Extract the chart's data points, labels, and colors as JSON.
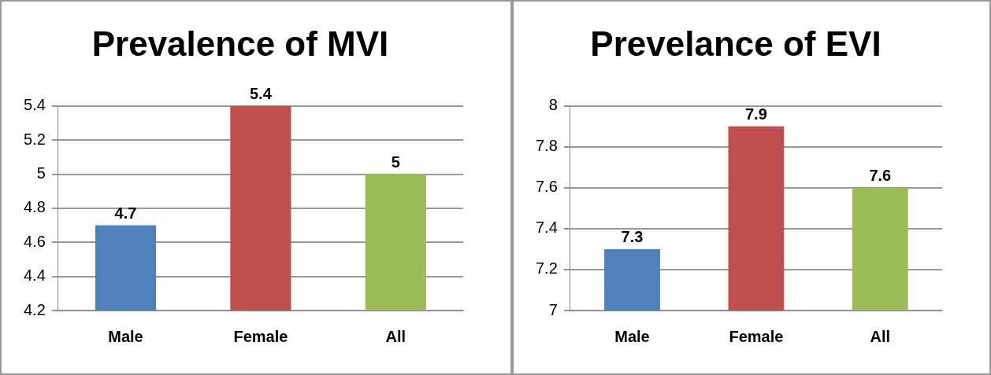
{
  "chart_data": [
    {
      "type": "bar",
      "title": "Prevalence of MVI",
      "categories": [
        "Male",
        "Female",
        "All"
      ],
      "values": [
        4.7,
        5.4,
        5
      ],
      "colors": [
        "#4f81bd",
        "#c0504d",
        "#9bbb59"
      ],
      "ylim": [
        4.2,
        5.4
      ],
      "yticks": [
        4.2,
        4.4,
        4.6,
        4.8,
        5,
        5.2,
        5.4
      ],
      "grid": "y",
      "data_labels": true
    },
    {
      "type": "bar",
      "title": "Prevelance of EVI",
      "categories": [
        "Male",
        "Female",
        "All"
      ],
      "values": [
        7.3,
        7.9,
        7.6
      ],
      "colors": [
        "#4f81bd",
        "#c0504d",
        "#9bbb59"
      ],
      "ylim": [
        7,
        8
      ],
      "yticks": [
        7,
        7.2,
        7.4,
        7.6,
        7.8,
        8
      ],
      "grid": "y",
      "data_labels": true
    }
  ]
}
